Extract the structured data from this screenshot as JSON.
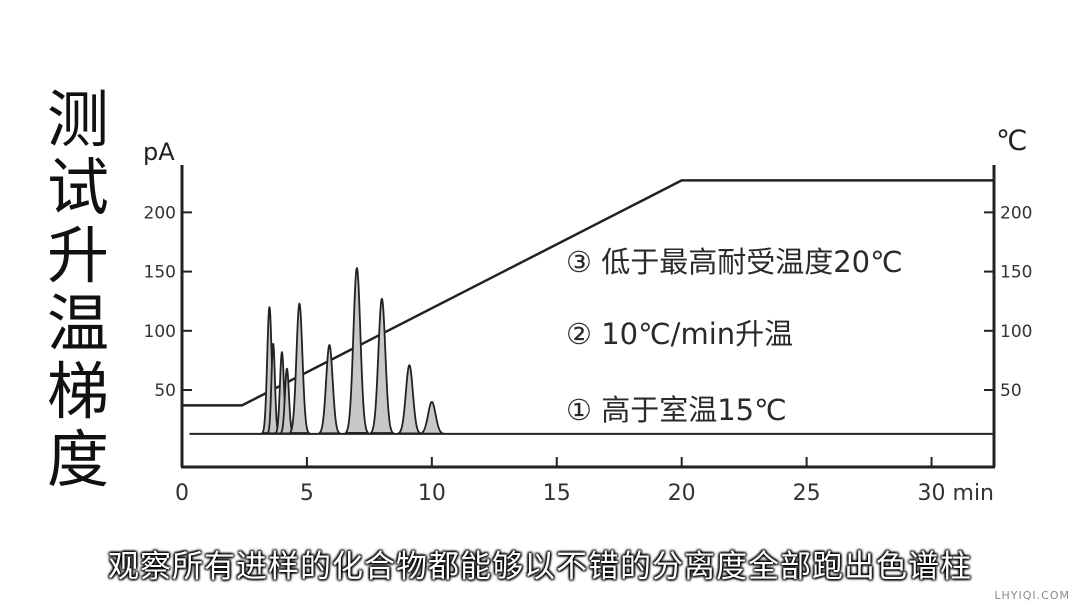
{
  "side_title": [
    "测",
    "试",
    "升",
    "温",
    "梯",
    "度"
  ],
  "subtitle": "观察所有进样的化合物都能够以不错的分离度全部跑出色谱柱",
  "watermark": "LHYIQI.COM",
  "chart_data": {
    "type": "line",
    "left_axis": {
      "label": "pA",
      "ticks": [
        50,
        100,
        150,
        200
      ],
      "range": [
        -15,
        240
      ]
    },
    "right_axis": {
      "label": "℃",
      "ticks": [
        50,
        100,
        150,
        200
      ],
      "range": [
        -15,
        240
      ]
    },
    "x_axis": {
      "unit": "min",
      "ticks": [
        "0",
        "5",
        "10",
        "15",
        "20",
        "25",
        "30 min"
      ],
      "tick_values": [
        0,
        5,
        10,
        15,
        20,
        25,
        30
      ],
      "range": [
        0,
        32.5
      ]
    },
    "series": [
      {
        "role": "temperature",
        "points": [
          [
            0,
            37
          ],
          [
            2.4,
            37
          ],
          [
            20,
            227
          ],
          [
            32.5,
            227
          ]
        ]
      },
      {
        "role": "chromatogram",
        "baseline": 13,
        "peaks": [
          {
            "rt": 3.5,
            "height": 107,
            "width": 0.09
          },
          {
            "rt": 3.65,
            "height": 76,
            "width": 0.07
          },
          {
            "rt": 4.0,
            "height": 69,
            "width": 0.08
          },
          {
            "rt": 4.2,
            "height": 55,
            "width": 0.08
          },
          {
            "rt": 4.7,
            "height": 110,
            "width": 0.12
          },
          {
            "rt": 5.9,
            "height": 75,
            "width": 0.13
          },
          {
            "rt": 7.0,
            "height": 140,
            "width": 0.14
          },
          {
            "rt": 8.0,
            "height": 114,
            "width": 0.14
          },
          {
            "rt": 9.1,
            "height": 58,
            "width": 0.14
          },
          {
            "rt": 10.0,
            "height": 27,
            "width": 0.15
          }
        ]
      }
    ],
    "annotations": [
      "③ 低于最高耐受温度20℃",
      "② 10℃/min升温",
      "① 高于室温15℃"
    ]
  }
}
